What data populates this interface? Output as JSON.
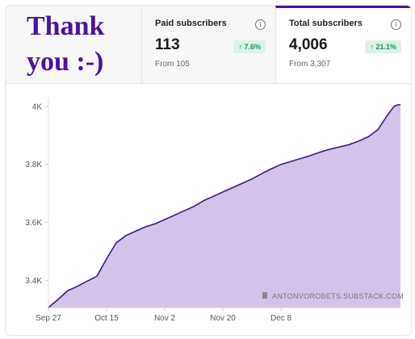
{
  "thanks": {
    "line1": "Thank",
    "line2": "you :-)"
  },
  "paid": {
    "label": "Paid subscribers",
    "value": "113",
    "change": "7.6%",
    "from": "From 105",
    "arrow_icon": "arrow-up-icon"
  },
  "total": {
    "label": "Total subscribers",
    "value": "4,006",
    "change": "21.1%",
    "from": "From 3,307",
    "arrow_icon": "arrow-up-icon"
  },
  "watermark": "ANTONVOROBETS.SUBSTACK.COM",
  "colors": {
    "accent": "#4b149b",
    "line": "#3a1c7a",
    "fill": "#cbb8e6",
    "badge_bg": "#d9f3e7",
    "badge_text": "#2d8a5b"
  },
  "chart_data": {
    "type": "area",
    "xlabels": [
      "Sep 27",
      "Oct 15",
      "Nov 2",
      "Nov 20",
      "Dec 8"
    ],
    "ytick_labels": [
      "3.4K",
      "3.6K",
      "3.8K",
      "4K"
    ],
    "yticks": [
      3400,
      3600,
      3800,
      4000
    ],
    "ylim": [
      3307,
      4030
    ],
    "grid": false,
    "x_days": [
      0,
      3,
      6,
      9,
      12,
      15,
      18,
      21,
      24,
      27,
      30,
      33,
      36,
      39,
      42,
      45,
      48,
      51,
      54,
      57,
      60,
      63,
      66,
      69,
      72,
      75,
      78,
      81,
      84,
      87,
      90,
      93,
      96,
      99,
      102,
      105,
      107,
      108,
      109
    ],
    "x_dates": [
      "Sep 27",
      "Sep 30",
      "Oct 3",
      "Oct 6",
      "Oct 9",
      "Oct 12",
      "Oct 15",
      "Oct 18",
      "Oct 21",
      "Oct 24",
      "Oct 27",
      "Oct 30",
      "Nov 2",
      "Nov 5",
      "Nov 8",
      "Nov 11",
      "Nov 14",
      "Nov 17",
      "Nov 20",
      "Nov 23",
      "Nov 26",
      "Nov 29",
      "Dec 2",
      "Dec 5",
      "Dec 8",
      "Dec 11",
      "Dec 14",
      "Dec 17",
      "Dec 20",
      "Dec 23",
      "Dec 26",
      "Dec 29",
      "Jan 1",
      "Jan 4",
      "Jan 7",
      "Jan 10",
      "Jan 12",
      "Jan 13",
      "Jan 14"
    ],
    "values": [
      3307,
      3335,
      3365,
      3380,
      3398,
      3415,
      3475,
      3530,
      3555,
      3570,
      3585,
      3595,
      3610,
      3625,
      3640,
      3655,
      3675,
      3690,
      3705,
      3720,
      3735,
      3750,
      3768,
      3785,
      3800,
      3810,
      3820,
      3830,
      3842,
      3852,
      3860,
      3868,
      3880,
      3895,
      3920,
      3970,
      4000,
      4005,
      4006
    ]
  }
}
